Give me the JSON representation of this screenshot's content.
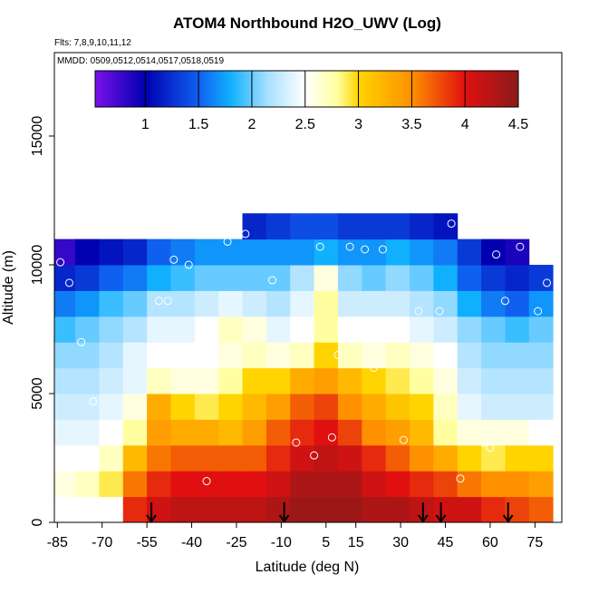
{
  "chart_data": {
    "type": "heatmap",
    "title": "ATOM4 Northbound H2O_UWV (Log)",
    "subtitle": "Flts: 7,8,9,10,11,12",
    "annotation": "MMDD: 0509,0512,0514,0517,0518,0519",
    "x_label": "Latitude (deg N)",
    "y_label": "Altitude (m)",
    "xlim": [
      -86,
      84
    ],
    "ylim": [
      0,
      18240
    ],
    "xticks": [
      -85,
      -70,
      -55,
      -40,
      -25,
      -10,
      5,
      15,
      30,
      45,
      60,
      75
    ],
    "yticks": [
      0,
      5000,
      10000,
      15000
    ],
    "lat_edges": [
      -87,
      -79,
      -71,
      -63,
      -55,
      -47,
      -39,
      -31,
      -23,
      -15,
      -7,
      1,
      9,
      17,
      25,
      33,
      41,
      49,
      57,
      65,
      73,
      81
    ],
    "alt_edges": [
      0,
      1000,
      2000,
      3000,
      4000,
      5000,
      6000,
      7000,
      8000,
      9000,
      10000,
      11000,
      12000
    ],
    "z": [
      [
        null,
        null,
        null,
        3.9,
        4.1,
        4.2,
        4.2,
        4.2,
        4.2,
        4.3,
        4.4,
        4.4,
        4.4,
        4.3,
        4.3,
        4.2,
        4.1,
        4.1,
        3.9,
        3.8,
        3.7
      ],
      [
        2.6,
        2.7,
        2.9,
        3.6,
        3.9,
        4.0,
        4.0,
        4.0,
        4.0,
        4.1,
        4.3,
        4.3,
        4.3,
        4.1,
        4.0,
        3.9,
        3.8,
        3.6,
        3.5,
        3.5,
        3.4
      ],
      [
        2.5,
        2.5,
        2.7,
        3.2,
        3.6,
        3.7,
        3.7,
        3.7,
        3.7,
        3.9,
        4.1,
        4.2,
        4.1,
        3.9,
        3.7,
        3.5,
        3.3,
        3.0,
        2.9,
        3.0,
        3.0
      ],
      [
        2.4,
        2.4,
        2.5,
        2.8,
        3.4,
        3.3,
        3.3,
        3.2,
        3.4,
        3.7,
        3.9,
        4.0,
        3.8,
        3.5,
        3.4,
        3.2,
        2.8,
        2.6,
        2.6,
        2.6,
        2.5
      ],
      [
        2.3,
        2.3,
        2.4,
        2.6,
        3.3,
        3.0,
        2.9,
        3.0,
        3.2,
        3.4,
        3.7,
        3.8,
        3.5,
        3.3,
        3.1,
        3.0,
        2.7,
        2.4,
        2.3,
        2.3,
        2.3
      ],
      [
        2.2,
        2.2,
        2.3,
        2.4,
        2.7,
        2.6,
        2.6,
        2.8,
        3.0,
        3.0,
        3.3,
        3.4,
        3.2,
        3.0,
        2.9,
        2.8,
        2.6,
        2.3,
        2.2,
        2.2,
        2.2
      ],
      [
        2.1,
        2.1,
        2.2,
        2.4,
        2.5,
        2.5,
        2.5,
        2.6,
        2.7,
        2.6,
        2.7,
        3.0,
        2.7,
        2.6,
        2.7,
        2.6,
        2.5,
        2.2,
        2.1,
        2.1,
        2.1
      ],
      [
        1.9,
        2.0,
        2.1,
        2.2,
        2.4,
        2.4,
        2.5,
        2.7,
        2.6,
        2.4,
        2.5,
        2.8,
        2.5,
        2.5,
        2.5,
        2.4,
        2.3,
        2.1,
        2.0,
        1.9,
        2.0
      ],
      [
        1.6,
        1.7,
        1.9,
        2.0,
        2.2,
        2.2,
        2.3,
        2.4,
        2.3,
        2.2,
        2.4,
        2.8,
        2.3,
        2.3,
        2.3,
        2.2,
        2.1,
        1.8,
        1.6,
        1.5,
        1.7
      ],
      [
        1.2,
        1.3,
        1.5,
        1.6,
        1.8,
        1.9,
        2.0,
        2.0,
        2.0,
        2.0,
        2.2,
        2.6,
        2.1,
        2.0,
        2.1,
        2.0,
        1.8,
        1.5,
        1.3,
        1.2,
        1.3
      ],
      [
        0.8,
        1.0,
        1.1,
        1.2,
        1.5,
        1.6,
        1.7,
        1.7,
        1.7,
        1.7,
        1.7,
        1.8,
        1.7,
        1.7,
        1.8,
        1.7,
        1.6,
        1.3,
        1.0,
        0.9,
        null
      ],
      [
        null,
        null,
        null,
        null,
        null,
        null,
        null,
        null,
        1.2,
        1.3,
        1.4,
        1.4,
        1.3,
        1.3,
        1.3,
        1.2,
        1.1,
        null,
        null,
        null,
        null
      ]
    ],
    "colorscale": [
      [
        0.53,
        "#7a10ea"
      ],
      [
        1.0,
        "#0000b0"
      ],
      [
        1.5,
        "#1060f0"
      ],
      [
        1.8,
        "#10b0ff"
      ],
      [
        2.15,
        "#a8e0ff"
      ],
      [
        2.5,
        "#ffffff"
      ],
      [
        2.8,
        "#ffffa0"
      ],
      [
        3.0,
        "#ffd400"
      ],
      [
        3.5,
        "#ff9000"
      ],
      [
        4.0,
        "#e01010"
      ],
      [
        4.5,
        "#8b1a1a"
      ]
    ],
    "colorbar_lim": [
      0.53,
      4.5
    ],
    "colorbar_ticks": [
      1.0,
      1.5,
      2.0,
      2.5,
      3.0,
      3.5,
      4.0,
      4.5
    ],
    "points": {
      "x": [
        -84,
        -81,
        -77,
        -73,
        -51,
        -48,
        -46,
        -41,
        -28,
        -22,
        -13,
        -5,
        3,
        7,
        13,
        18,
        24,
        31,
        36,
        43,
        47,
        55,
        58,
        62,
        65,
        70,
        76,
        79,
        -35,
        1,
        9,
        21,
        50,
        60
      ],
      "y": [
        10100,
        9300,
        7000,
        4700,
        8600,
        8600,
        10200,
        10000,
        10900,
        11200,
        9400,
        3100,
        10700,
        3300,
        10700,
        10600,
        10600,
        3200,
        8200,
        8200,
        11600,
        11200,
        3100,
        10400,
        8600,
        10700,
        8200,
        9300,
        1600,
        2600,
        6500,
        6000,
        1700,
        2900
      ]
    },
    "arrows_x": [
      -53.5,
      -9,
      37.5,
      43.5,
      66
    ]
  }
}
